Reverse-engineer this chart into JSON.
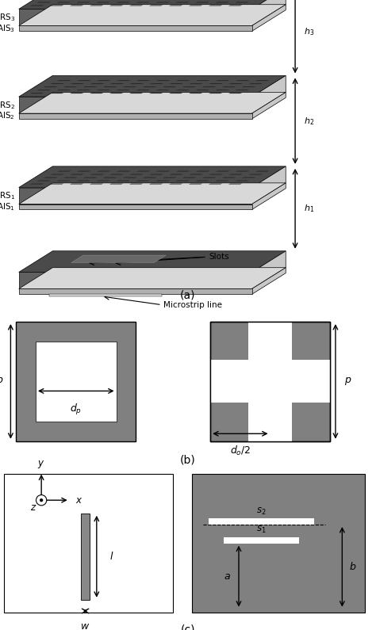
{
  "bg_color": "#ffffff",
  "dark_gray": "#404040",
  "mid_gray": "#808080",
  "light_gray": "#c8c8c8",
  "very_light_gray": "#d8d8d8",
  "prs_face_color": "#4a4a4a",
  "prs_right_color": "#c8c8c8",
  "prs_front_color": "#606060",
  "ais_top_color": "#d8d8d8",
  "ais_right_color": "#c8c8c8",
  "ais_front_color": "#b0b0b0",
  "slot_color": "#282828",
  "label_a": "(a)",
  "label_b": "(b)",
  "label_c": "(c)"
}
